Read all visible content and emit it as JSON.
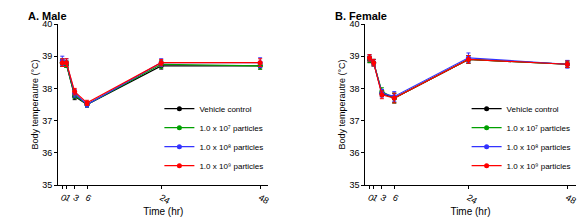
{
  "chart_data": [
    {
      "type": "line",
      "title": "A. Male",
      "x_label": "Time (hr)",
      "y_label": "Body temperautre (°C)",
      "x": [
        0,
        1,
        3,
        6,
        24,
        48
      ],
      "xlim": [
        -1,
        50
      ],
      "xticks": [
        0,
        1,
        3,
        6,
        24,
        48
      ],
      "ylim": [
        35,
        40
      ],
      "yticks": [
        35,
        36,
        37,
        38,
        39,
        40
      ],
      "grid": false,
      "legend": "lower right",
      "marker": "circle",
      "line_style": "solid",
      "series": [
        {
          "name": "Vehicle control",
          "color": "#000000",
          "values": [
            38.8,
            38.75,
            37.75,
            37.5,
            38.7,
            38.7
          ],
          "errors": [
            0.1,
            0.1,
            0.1,
            0.08,
            0.1,
            0.1
          ]
        },
        {
          "name": "1.0 x 10⁷ particles",
          "color": "#00a000",
          "values": [
            38.8,
            38.75,
            37.8,
            37.5,
            38.75,
            38.7
          ],
          "errors": [
            0.12,
            0.1,
            0.1,
            0.08,
            0.12,
            0.1
          ]
        },
        {
          "name": "1.0 x 10⁸ particles",
          "color": "#3333ff",
          "values": [
            38.85,
            38.8,
            37.85,
            37.5,
            38.8,
            38.8
          ],
          "errors": [
            0.15,
            0.12,
            0.12,
            0.08,
            0.12,
            0.15
          ]
        },
        {
          "name": "1.0 x 10⁹ particles",
          "color": "#ff0000",
          "values": [
            38.8,
            38.8,
            37.9,
            37.55,
            38.8,
            38.8
          ],
          "errors": [
            0.12,
            0.12,
            0.1,
            0.08,
            0.1,
            0.12
          ]
        }
      ]
    },
    {
      "type": "line",
      "title": "B. Female",
      "x_label": "Time (hr)",
      "y_label": "Body temperautre (°C)",
      "x": [
        0,
        1,
        3,
        6,
        24,
        48
      ],
      "xlim": [
        -1,
        50
      ],
      "xticks": [
        0,
        1,
        3,
        6,
        24,
        48
      ],
      "ylim": [
        35,
        40
      ],
      "yticks": [
        35,
        36,
        37,
        38,
        39,
        40
      ],
      "grid": false,
      "legend": "lower right",
      "marker": "circle",
      "line_style": "solid",
      "series": [
        {
          "name": "Vehicle control",
          "color": "#000000",
          "values": [
            38.9,
            38.8,
            37.85,
            37.7,
            38.9,
            38.75
          ],
          "errors": [
            0.1,
            0.1,
            0.1,
            0.15,
            0.12,
            0.1
          ]
        },
        {
          "name": "1.0 x 10⁷ particles",
          "color": "#00a000",
          "values": [
            38.9,
            38.8,
            37.9,
            37.7,
            38.9,
            38.75
          ],
          "errors": [
            0.1,
            0.1,
            0.12,
            0.15,
            0.12,
            0.1
          ]
        },
        {
          "name": "1.0 x 10⁸ particles",
          "color": "#3333ff",
          "values": [
            38.95,
            38.8,
            37.85,
            37.75,
            38.95,
            38.75
          ],
          "errors": [
            0.1,
            0.1,
            0.12,
            0.15,
            0.15,
            0.12
          ]
        },
        {
          "name": "1.0 x 10⁹ particles",
          "color": "#ff0000",
          "values": [
            38.95,
            38.8,
            37.8,
            37.7,
            38.9,
            38.75
          ],
          "errors": [
            0.1,
            0.1,
            0.12,
            0.15,
            0.12,
            0.1
          ]
        }
      ]
    }
  ]
}
